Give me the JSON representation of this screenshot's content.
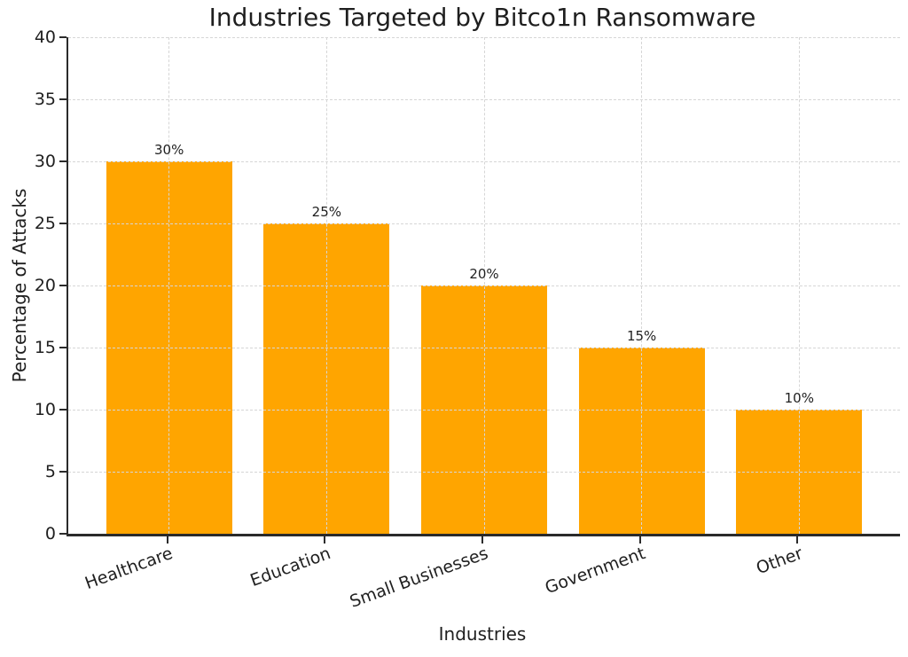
{
  "chart_data": {
    "type": "bar",
    "title": "Industries Targeted by Bitco1n Ransomware",
    "xlabel": "Industries",
    "ylabel": "Percentage of Attacks",
    "categories": [
      "Healthcare",
      "Education",
      "Small Businesses",
      "Government",
      "Other"
    ],
    "values": [
      30,
      25,
      20,
      15,
      10
    ],
    "bar_labels": [
      "30%",
      "25%",
      "20%",
      "15%",
      "10%"
    ],
    "yticks": [
      0,
      5,
      10,
      15,
      20,
      25,
      30,
      35,
      40
    ],
    "ylim": [
      0,
      40
    ],
    "grid": "dashed-both-axes-drawn-above-bars",
    "legend": "none",
    "xtick_rotation_deg": -20,
    "bar_width_fraction": 0.8,
    "colors": {
      "bar": "#FFA500",
      "grid": "#d6d6d6",
      "text": "#1f1f1f",
      "spine": "#2b2b2b",
      "background": "#ffffff"
    }
  }
}
